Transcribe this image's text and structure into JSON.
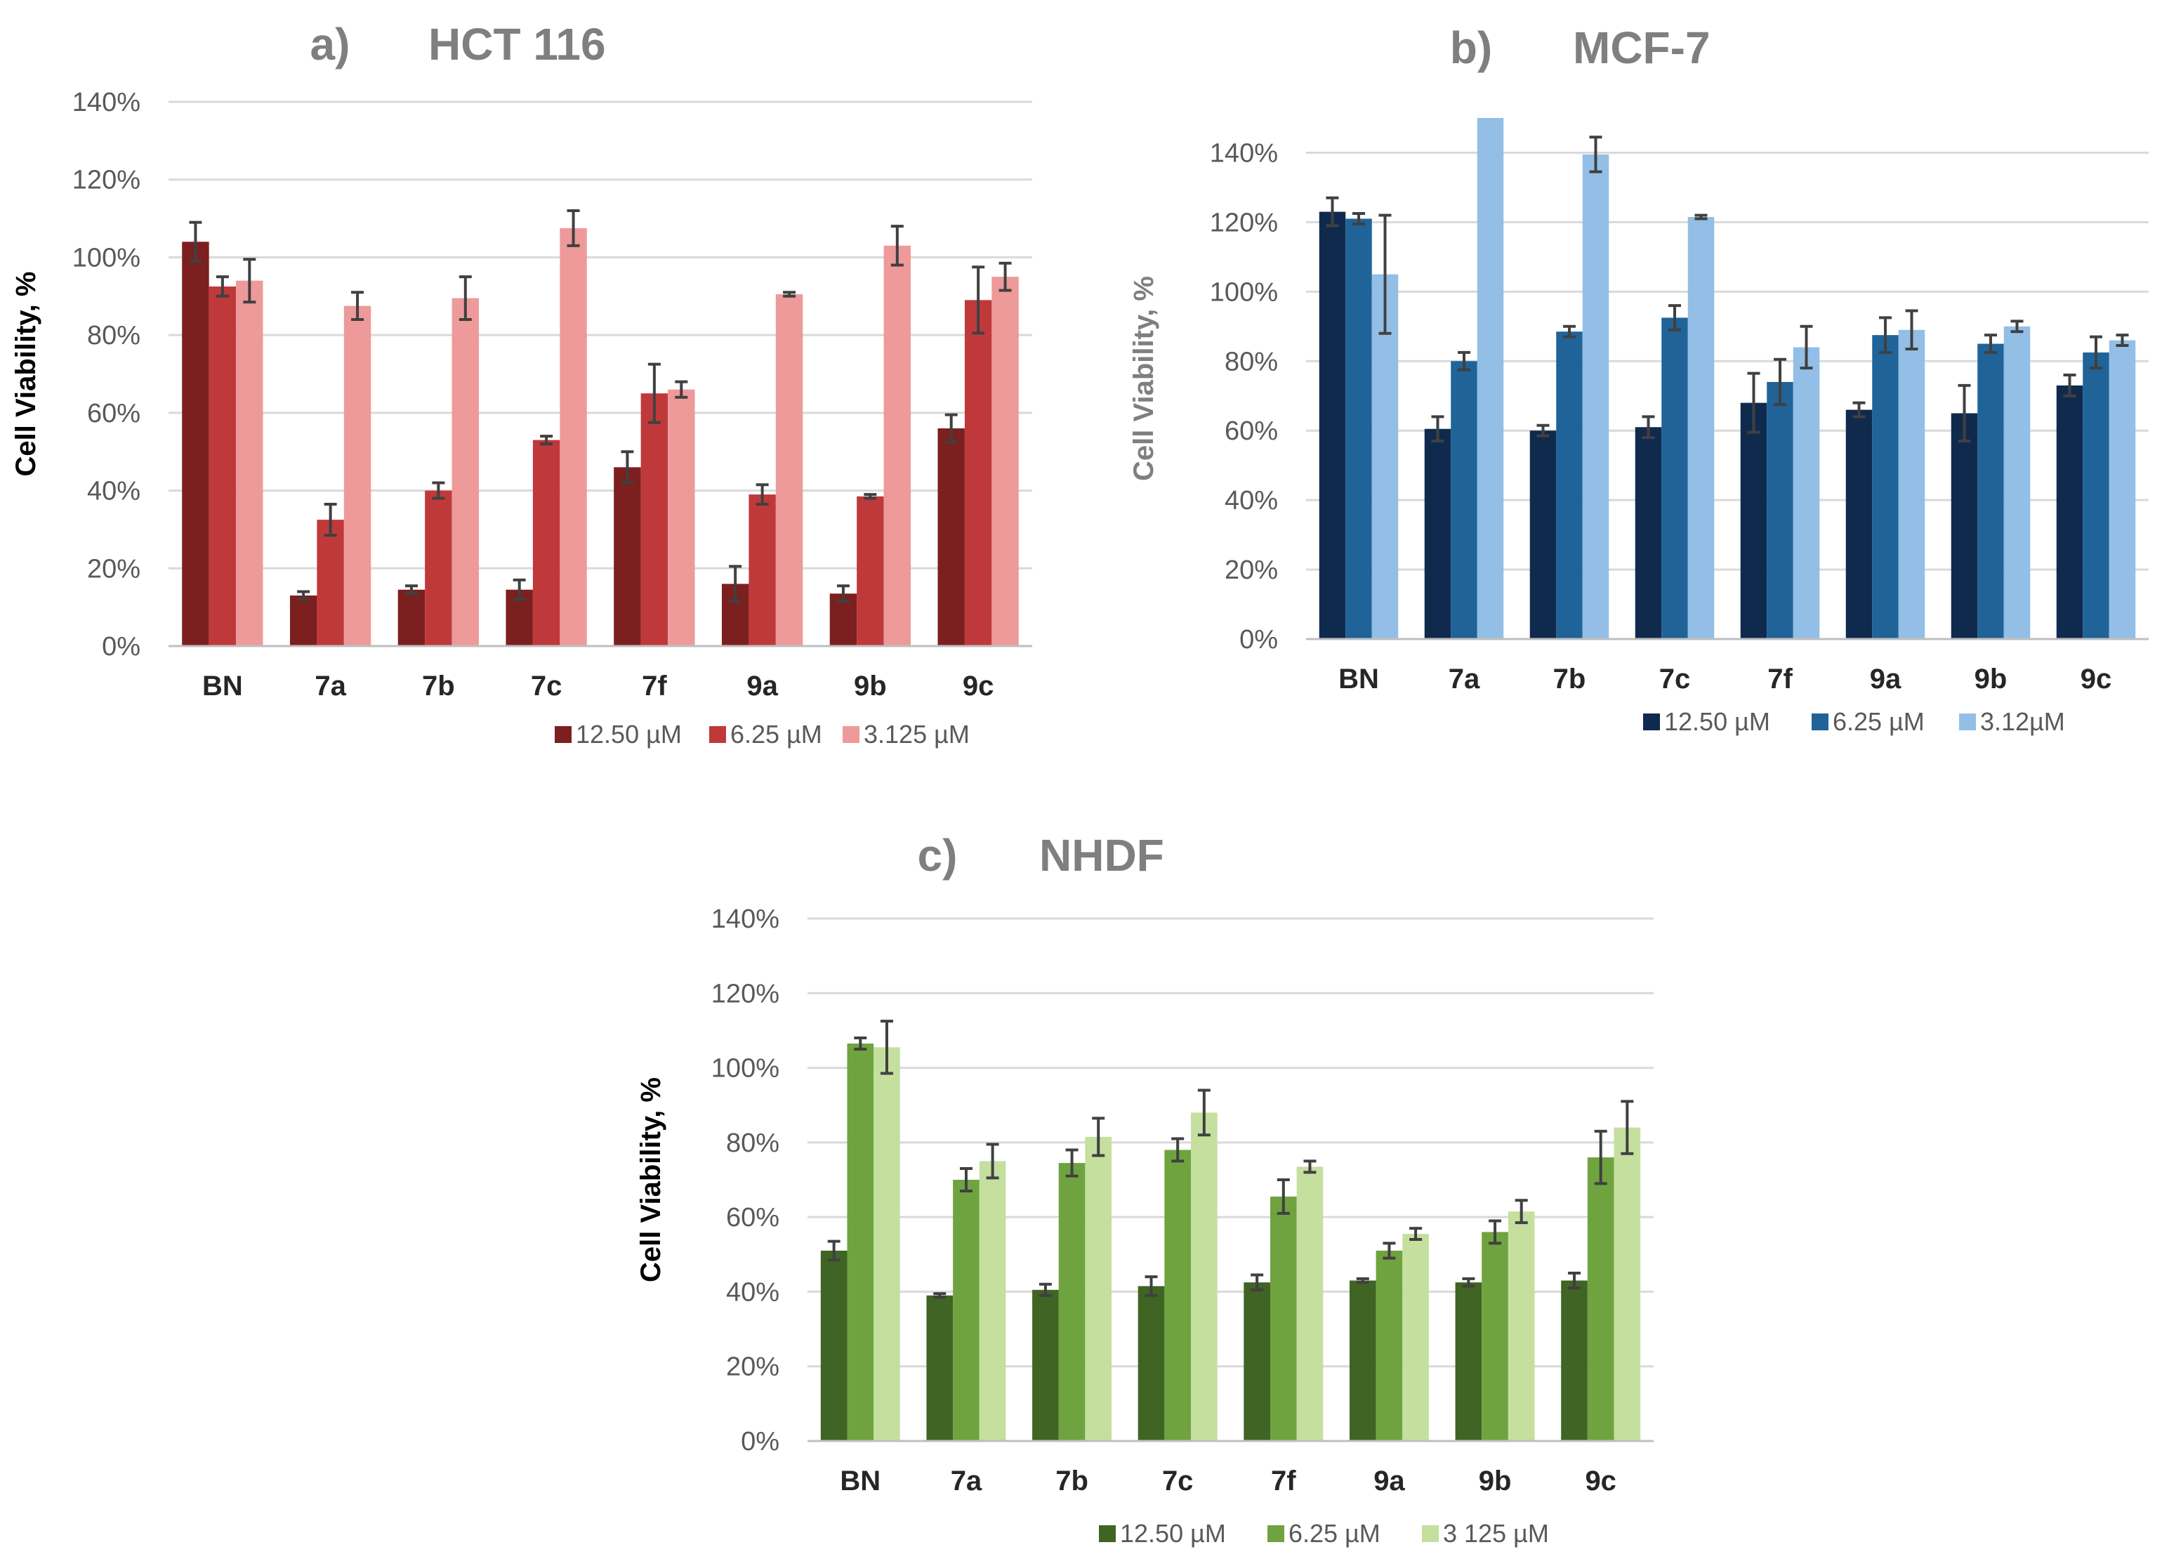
{
  "chart_data": [
    {
      "type": "bar",
      "panel_letter": "a)",
      "title": "HCT 116",
      "ylabel": "Cell Viability, %",
      "ylim": [
        0,
        140
      ],
      "yticks": [
        "0%",
        "20%",
        "40%",
        "60%",
        "80%",
        "100%",
        "120%",
        "140%"
      ],
      "categories": [
        "BN",
        "7a",
        "7b",
        "7c",
        "7f",
        "9a",
        "9b",
        "9c"
      ],
      "series": [
        {
          "name": "12.50 µM",
          "color": "#7b1f1f",
          "values": [
            104,
            13,
            14.5,
            14.5,
            46,
            16,
            13.5,
            56
          ],
          "errors": [
            5,
            1,
            1,
            2.5,
            4,
            4.5,
            2,
            3.5
          ]
        },
        {
          "name": "6.25 µM",
          "color": "#c0393a",
          "values": [
            92.5,
            32.5,
            40,
            53,
            65,
            39,
            38.5,
            89
          ],
          "errors": [
            2.5,
            4,
            2,
            1,
            7.5,
            2.5,
            0.5,
            8.5
          ]
        },
        {
          "name": "3.125 µM",
          "color": "#ee9a9a",
          "values": [
            94,
            87.5,
            89.5,
            107.5,
            66,
            90.5,
            103,
            95
          ],
          "errors": [
            5.5,
            3.5,
            5.5,
            4.5,
            2,
            0.5,
            5,
            3.5
          ]
        }
      ]
    },
    {
      "type": "bar",
      "panel_letter": "b)",
      "title": "MCF-7",
      "ylabel": "Cell Viability, %",
      "ylim": [
        0,
        150
      ],
      "yticks": [
        "0%",
        "20%",
        "40%",
        "60%",
        "80%",
        "100%",
        "120%",
        "140%"
      ],
      "categories": [
        "BN",
        "7a",
        "7b",
        "7c",
        "7f",
        "9a",
        "9b",
        "9c"
      ],
      "series": [
        {
          "name": "12.50 µM",
          "color": "#0f2a4d",
          "values": [
            123,
            60.5,
            60,
            61,
            68,
            66,
            65,
            73
          ],
          "errors": [
            4,
            3.5,
            1.5,
            3,
            8.5,
            2,
            8,
            3
          ]
        },
        {
          "name": "6.25 µM",
          "color": "#1f6399",
          "values": [
            121,
            80,
            88.5,
            92.5,
            74,
            87.5,
            85,
            82.5
          ],
          "errors": [
            1.5,
            2.5,
            1.5,
            3.5,
            6.5,
            5,
            2.5,
            4.5
          ]
        },
        {
          "name": "3.12µM",
          "color": "#93bfe6",
          "values": [
            105,
            150,
            139.5,
            121.5,
            84,
            89,
            90,
            86
          ],
          "errors": [
            17,
            0,
            5,
            0.5,
            6,
            5.5,
            1.5,
            1.5
          ]
        }
      ]
    },
    {
      "type": "bar",
      "panel_letter": "c)",
      "title": "NHDF",
      "ylabel": "Cell Viability, %",
      "ylim": [
        0,
        140
      ],
      "yticks": [
        "0%",
        "20%",
        "40%",
        "60%",
        "80%",
        "100%",
        "120%",
        "140%"
      ],
      "categories": [
        "BN",
        "7a",
        "7b",
        "7c",
        "7f",
        "9a",
        "9b",
        "9c"
      ],
      "series": [
        {
          "name": "12.50 µM",
          "color": "#3f6424",
          "values": [
            51,
            39,
            40.5,
            41.5,
            42.5,
            43,
            42.5,
            43
          ],
          "errors": [
            2.5,
            0.5,
            1.5,
            2.5,
            2,
            0.5,
            1,
            2
          ]
        },
        {
          "name": "6.25 µM",
          "color": "#6fa33f",
          "values": [
            106.5,
            70,
            74.5,
            78,
            65.5,
            51,
            56,
            76
          ],
          "errors": [
            1.5,
            3,
            3.5,
            3,
            4.5,
            2,
            3,
            7
          ]
        },
        {
          "name": "3 125 µM",
          "color": "#c5df9f",
          "values": [
            105.5,
            75,
            81.5,
            88,
            73.5,
            55.5,
            61.5,
            84
          ],
          "errors": [
            7,
            4.5,
            5,
            6,
            1.5,
            1.5,
            3,
            7
          ]
        }
      ]
    }
  ]
}
